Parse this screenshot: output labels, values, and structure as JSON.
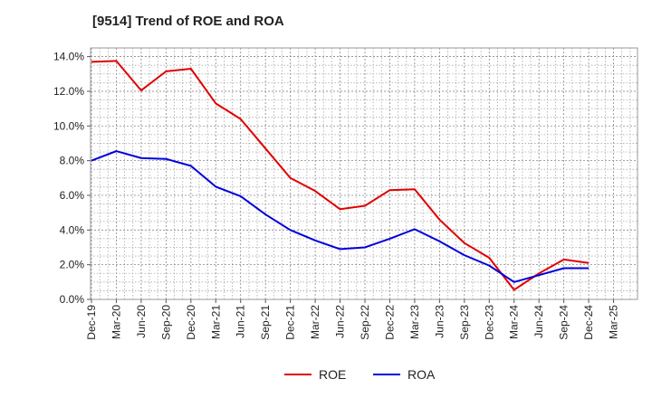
{
  "chart_data": {
    "type": "line",
    "title": "[9514]  Trend of ROE and ROA",
    "xlabel": "",
    "ylabel": "",
    "x": [
      "Dec-19",
      "Mar-20",
      "Jun-20",
      "Sep-20",
      "Dec-20",
      "Mar-21",
      "Jun-21",
      "Sep-21",
      "Dec-21",
      "Mar-22",
      "Jun-22",
      "Sep-22",
      "Dec-22",
      "Mar-23",
      "Jun-23",
      "Sep-23",
      "Dec-23",
      "Mar-24",
      "Jun-24",
      "Sep-24",
      "Dec-24",
      "Mar-25"
    ],
    "ylim": [
      0,
      14.5
    ],
    "yticks": [
      0,
      2,
      4,
      6,
      8,
      10,
      12,
      14
    ],
    "ytick_labels": [
      "0.0%",
      "2.0%",
      "4.0%",
      "6.0%",
      "8.0%",
      "10.0%",
      "12.0%",
      "14.0%"
    ],
    "grid": true,
    "legend_position": "bottom",
    "series": [
      {
        "name": "ROE",
        "color": "#e00000",
        "values": [
          13.7,
          13.75,
          12.05,
          13.15,
          13.3,
          11.3,
          10.4,
          8.7,
          7.0,
          6.25,
          5.2,
          5.4,
          6.3,
          6.35,
          4.6,
          3.25,
          2.4,
          0.55,
          1.5,
          2.3,
          2.1,
          null
        ]
      },
      {
        "name": "ROA",
        "color": "#0000dd",
        "values": [
          8.0,
          8.55,
          8.15,
          8.1,
          7.7,
          6.5,
          5.95,
          4.9,
          4.0,
          3.4,
          2.9,
          3.0,
          3.5,
          4.05,
          3.35,
          2.55,
          1.95,
          1.0,
          1.4,
          1.8,
          1.8,
          null
        ]
      }
    ]
  }
}
